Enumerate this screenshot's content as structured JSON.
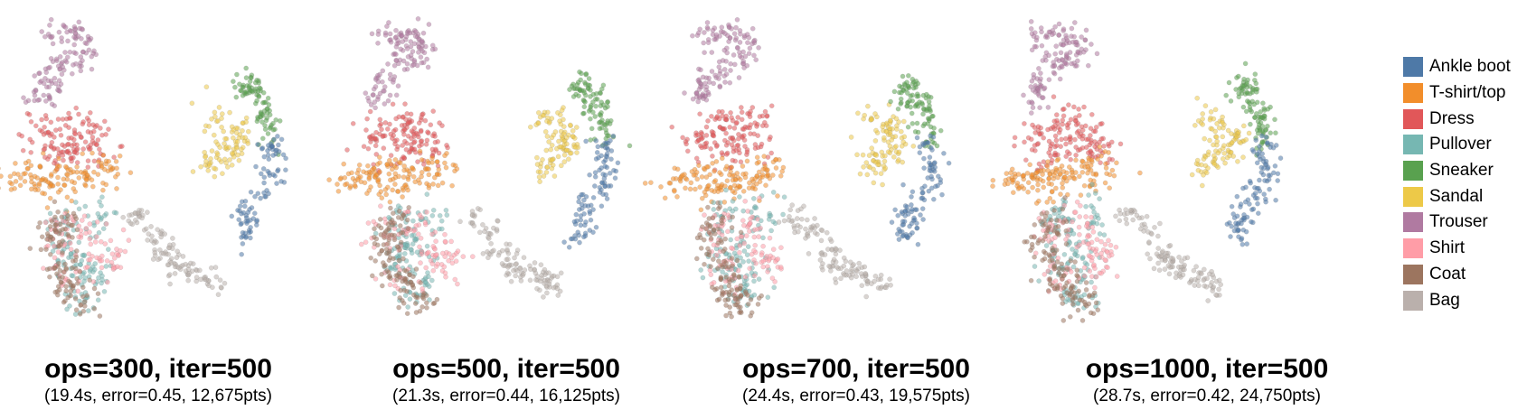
{
  "chart_data": {
    "type": "scatter",
    "panels": [
      {
        "title": "ops=300, iter=500",
        "subtitle": "(19.4s, error=0.45, 12,675pts)",
        "ops": 300,
        "iter": 500,
        "time_s": 19.4,
        "error": 0.45,
        "points": 12675
      },
      {
        "title": "ops=500, iter=500",
        "subtitle": "(21.3s, error=0.44, 16,125pts)",
        "ops": 500,
        "iter": 500,
        "time_s": 21.3,
        "error": 0.44,
        "points": 16125
      },
      {
        "title": "ops=700, iter=500",
        "subtitle": "(24.4s, error=0.43, 19,575pts)",
        "ops": 700,
        "iter": 500,
        "time_s": 24.4,
        "error": 0.43,
        "points": 19575
      },
      {
        "title": "ops=1000, iter=500",
        "subtitle": "(28.7s, error=0.42, 24,750pts)",
        "ops": 1000,
        "iter": 500,
        "time_s": 28.7,
        "error": 0.42,
        "points": 24750
      }
    ],
    "legend_position": "right",
    "grid": false,
    "axes_visible": false
  },
  "legend": {
    "items": [
      {
        "label": "Ankle boot",
        "color": "#4e79a7"
      },
      {
        "label": "T-shirt/top",
        "color": "#f28e2b"
      },
      {
        "label": "Dress",
        "color": "#e15759"
      },
      {
        "label": "Pullover",
        "color": "#76b7b2"
      },
      {
        "label": "Sneaker",
        "color": "#59a14f"
      },
      {
        "label": "Sandal",
        "color": "#edc948"
      },
      {
        "label": "Trouser",
        "color": "#b07aa1"
      },
      {
        "label": "Shirt",
        "color": "#ff9da7"
      },
      {
        "label": "Coat",
        "color": "#9c755f"
      },
      {
        "label": "Bag",
        "color": "#bab0ac"
      }
    ]
  }
}
